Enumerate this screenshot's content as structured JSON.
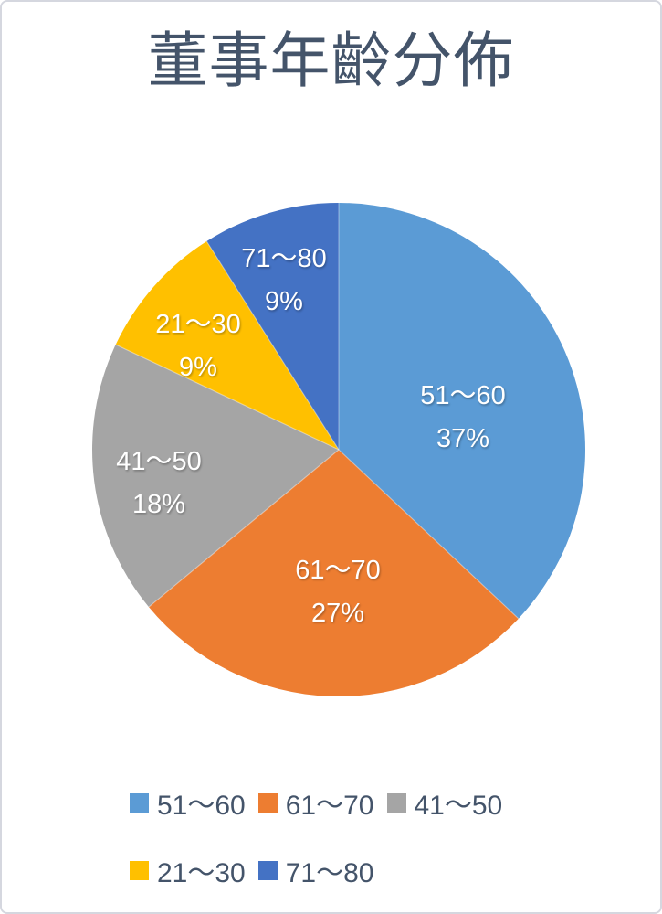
{
  "page": {
    "background": "#FFFFFF",
    "frame_border_color": "#D5D7DF"
  },
  "chart_data": {
    "type": "pie",
    "title": "董事年齡分佈",
    "title_color": "#44546A",
    "data_label_color": "#FFFFFF",
    "legend_text_color": "#44546A",
    "legend_position": "bottom",
    "start_angle_deg": 0,
    "direction": "clockwise",
    "total_pct": 100,
    "slices": [
      {
        "label": "51～60",
        "value_pct": 37,
        "pct_label": "37%",
        "color": "#5B9BD5"
      },
      {
        "label": "61～70",
        "value_pct": 27,
        "pct_label": "27%",
        "color": "#ED7D31"
      },
      {
        "label": "41～50",
        "value_pct": 18,
        "pct_label": "18%",
        "color": "#A5A5A5"
      },
      {
        "label": "21～30",
        "value_pct": 9,
        "pct_label": "9%",
        "color": "#FFC000"
      },
      {
        "label": "71～80",
        "value_pct": 9,
        "pct_label": "9%",
        "color": "#4472C4"
      }
    ]
  }
}
